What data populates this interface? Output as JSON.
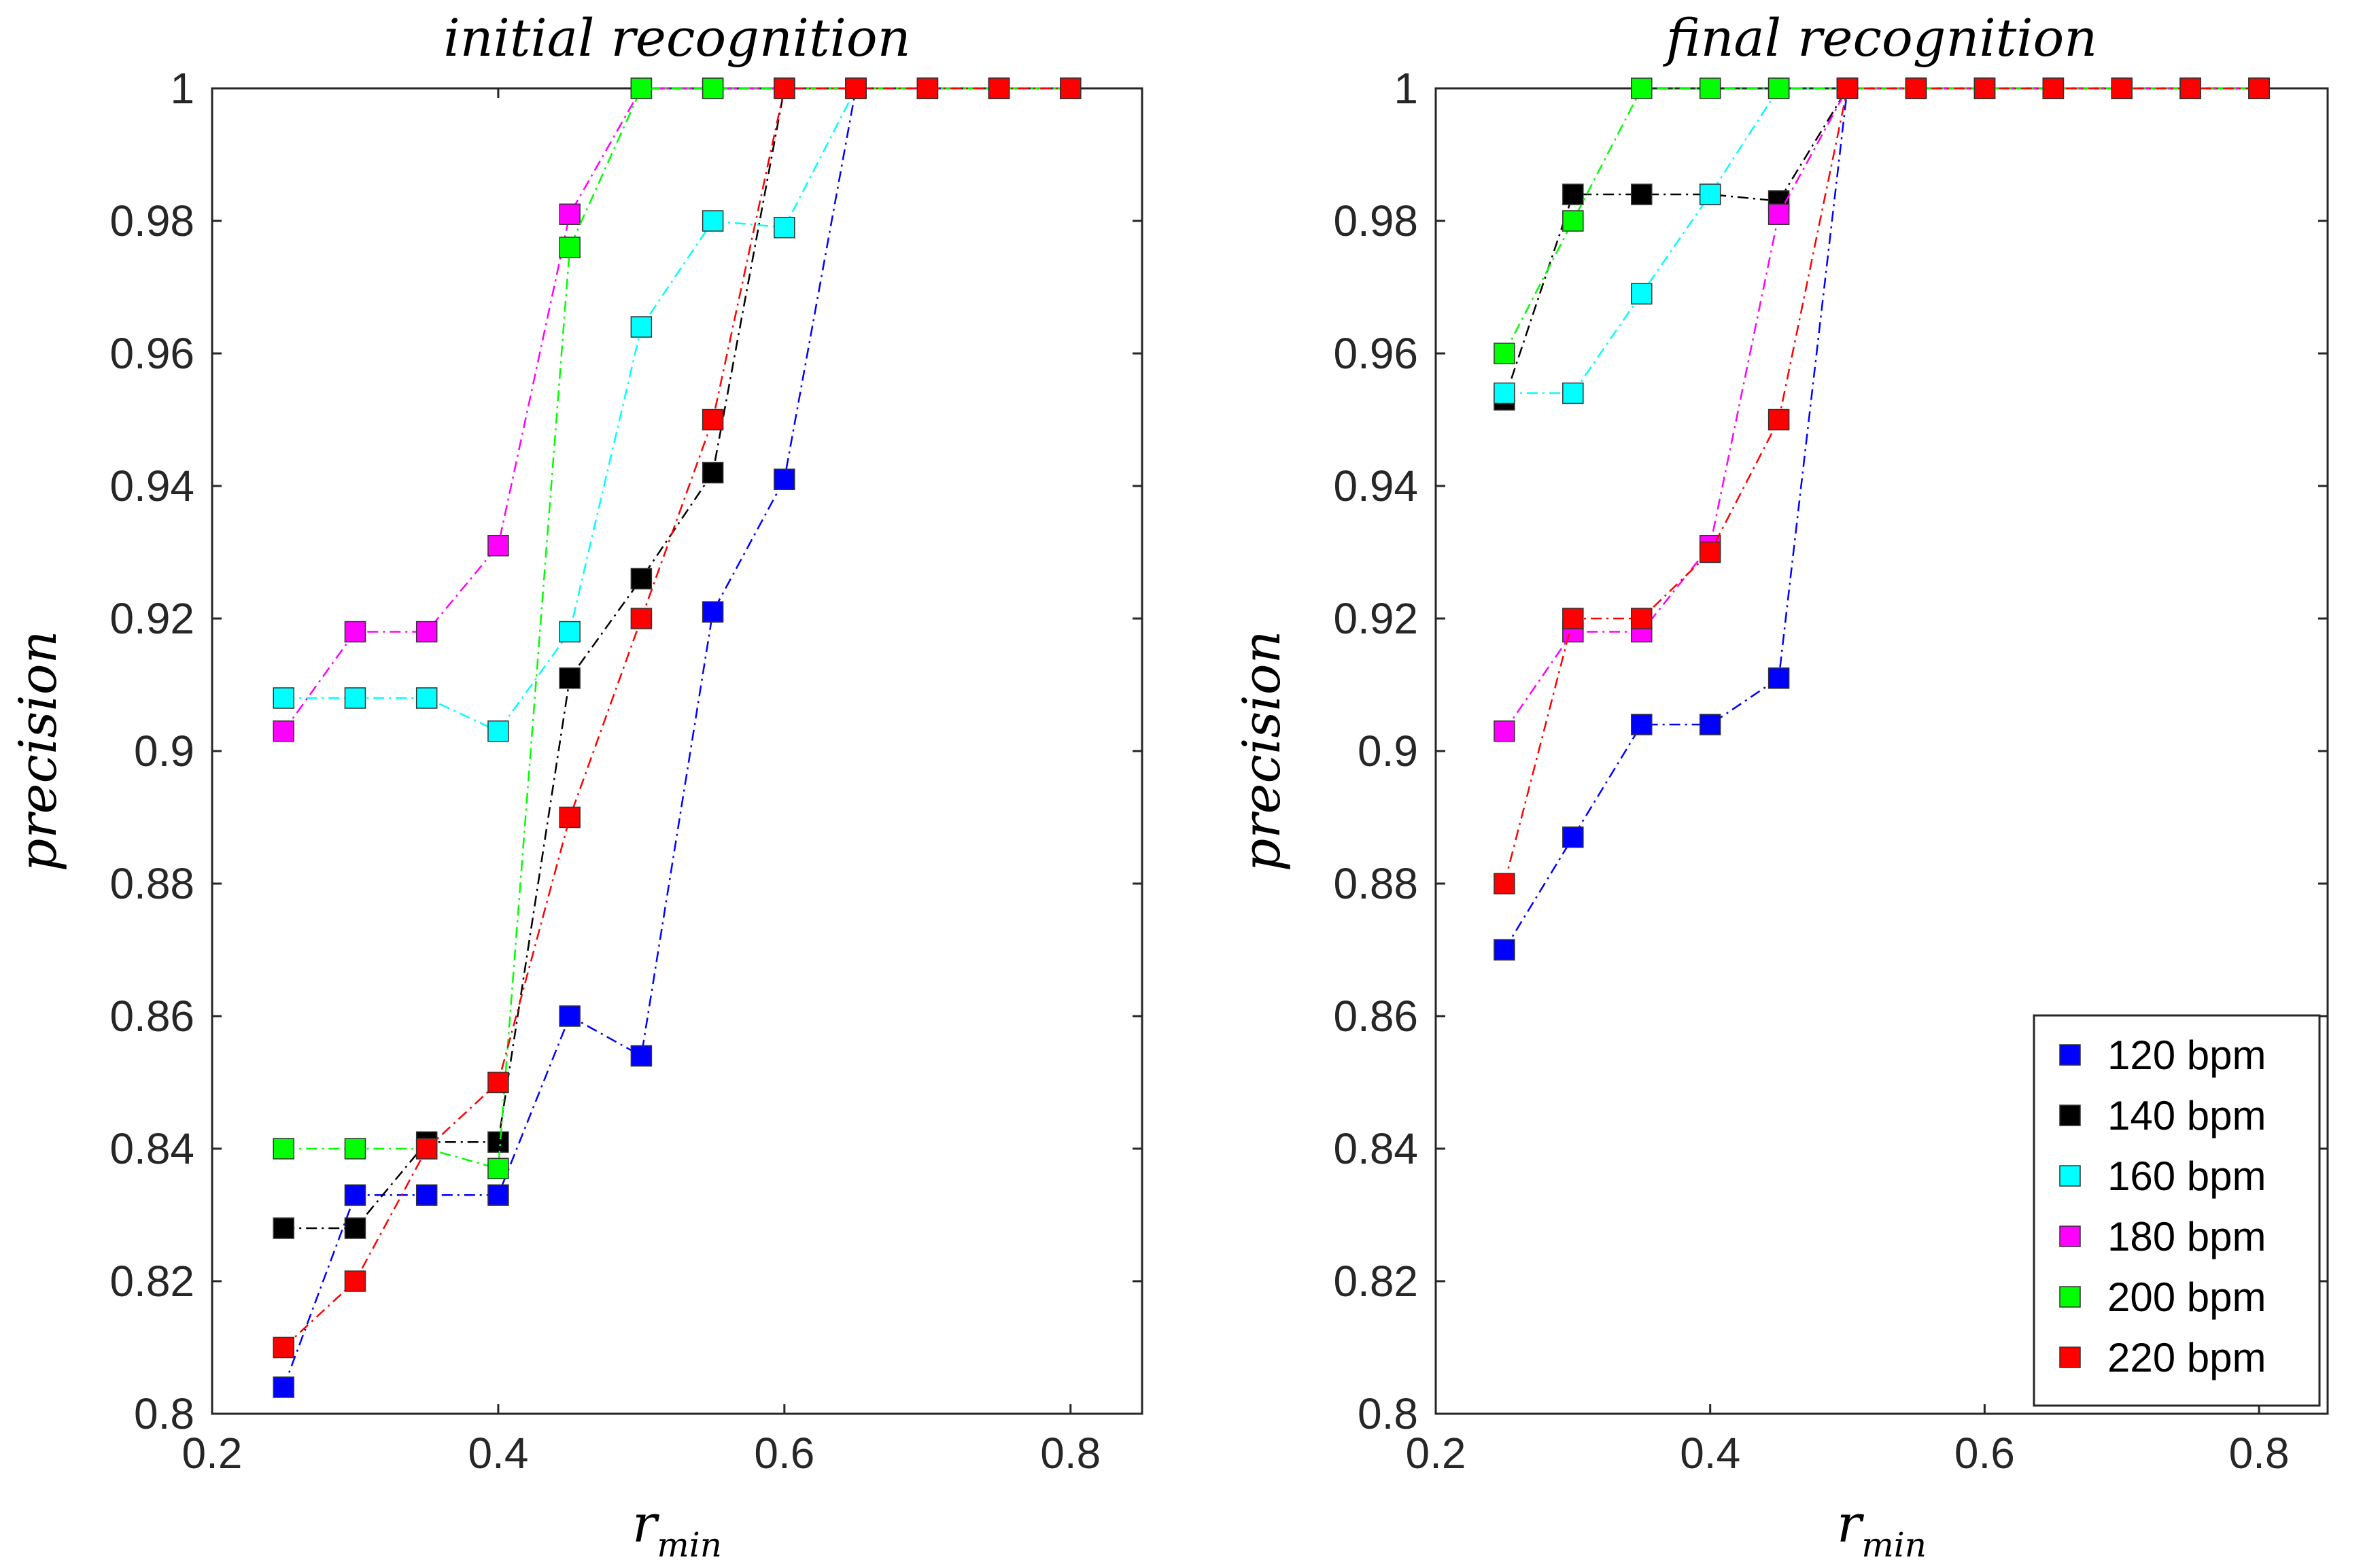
{
  "chart_data": [
    {
      "type": "line",
      "title": "initial recognition",
      "xlabel_main": "r",
      "xlabel_sub": "min",
      "ylabel": "precision",
      "xlim": [
        0.2,
        0.85
      ],
      "ylim": [
        0.8,
        1.0
      ],
      "xticks": [
        0.2,
        0.4,
        0.6,
        0.8
      ],
      "xtick_labels": [
        "0.2",
        "0.4",
        "0.6",
        "0.8"
      ],
      "yticks": [
        0.8,
        0.82,
        0.84,
        0.86,
        0.88,
        0.9,
        0.92,
        0.94,
        0.96,
        0.98,
        1.0
      ],
      "ytick_labels": [
        "0.8",
        "0.82",
        "0.84",
        "0.86",
        "0.88",
        "0.9",
        "0.92",
        "0.94",
        "0.96",
        "0.98",
        "1"
      ],
      "x": [
        0.25,
        0.3,
        0.35,
        0.4,
        0.45,
        0.5,
        0.55,
        0.6,
        0.65,
        0.7,
        0.75,
        0.8
      ],
      "series": [
        {
          "name": "120 bpm",
          "color": "#0000ff",
          "values": [
            0.804,
            0.833,
            0.833,
            0.833,
            0.86,
            0.854,
            0.921,
            0.941,
            1,
            1,
            1,
            1
          ]
        },
        {
          "name": "140 bpm",
          "color": "#000000",
          "values": [
            0.828,
            0.828,
            0.841,
            0.841,
            0.911,
            0.926,
            0.942,
            1,
            1,
            1,
            1,
            1
          ]
        },
        {
          "name": "160 bpm",
          "color": "#00ffff",
          "values": [
            0.908,
            0.908,
            0.908,
            0.903,
            0.918,
            0.964,
            0.98,
            0.979,
            1,
            1,
            1,
            1
          ]
        },
        {
          "name": "180 bpm",
          "color": "#ff00ff",
          "values": [
            0.903,
            0.918,
            0.918,
            0.931,
            0.981,
            1,
            1,
            1,
            1,
            1,
            1,
            1
          ]
        },
        {
          "name": "200 bpm",
          "color": "#00ff00",
          "values": [
            0.84,
            0.84,
            0.84,
            0.837,
            0.976,
            1,
            1,
            1,
            1,
            1,
            1,
            1
          ]
        },
        {
          "name": "220 bpm",
          "color": "#ff0000",
          "values": [
            0.81,
            0.82,
            0.84,
            0.85,
            0.89,
            0.92,
            0.95,
            1,
            1,
            1,
            1,
            1
          ]
        }
      ]
    },
    {
      "type": "line",
      "title": "final recognition",
      "xlabel_main": "r",
      "xlabel_sub": "min",
      "ylabel": "precision",
      "xlim": [
        0.2,
        0.85
      ],
      "ylim": [
        0.8,
        1.0
      ],
      "xticks": [
        0.2,
        0.4,
        0.6,
        0.8
      ],
      "xtick_labels": [
        "0.2",
        "0.4",
        "0.6",
        "0.8"
      ],
      "yticks": [
        0.8,
        0.82,
        0.84,
        0.86,
        0.88,
        0.9,
        0.92,
        0.94,
        0.96,
        0.98,
        1.0
      ],
      "ytick_labels": [
        "0.8",
        "0.82",
        "0.84",
        "0.86",
        "0.88",
        "0.9",
        "0.92",
        "0.94",
        "0.96",
        "0.98",
        "1"
      ],
      "x": [
        0.25,
        0.3,
        0.35,
        0.4,
        0.45,
        0.5,
        0.55,
        0.6,
        0.65,
        0.7,
        0.75,
        0.8
      ],
      "legend": {
        "location": "bottom-right",
        "entries": [
          "120 bpm",
          "140 bpm",
          "160 bpm",
          "180 bpm",
          "200 bpm",
          "220 bpm"
        ]
      },
      "series": [
        {
          "name": "120 bpm",
          "color": "#0000ff",
          "values": [
            0.87,
            0.887,
            0.904,
            0.904,
            0.911,
            1,
            1,
            1,
            1,
            1,
            1,
            1
          ]
        },
        {
          "name": "140 bpm",
          "color": "#000000",
          "values": [
            0.953,
            0.984,
            0.984,
            0.984,
            0.983,
            1,
            1,
            1,
            1,
            1,
            1,
            1
          ]
        },
        {
          "name": "160 bpm",
          "color": "#00ffff",
          "values": [
            0.954,
            0.954,
            0.969,
            0.984,
            1,
            1,
            1,
            1,
            1,
            1,
            1,
            1
          ]
        },
        {
          "name": "180 bpm",
          "color": "#ff00ff",
          "values": [
            0.903,
            0.918,
            0.918,
            0.931,
            0.981,
            1,
            1,
            1,
            1,
            1,
            1,
            1
          ]
        },
        {
          "name": "200 bpm",
          "color": "#00ff00",
          "values": [
            0.96,
            0.98,
            1,
            1,
            1,
            1,
            1,
            1,
            1,
            1,
            1,
            1
          ]
        },
        {
          "name": "220 bpm",
          "color": "#ff0000",
          "values": [
            0.88,
            0.92,
            0.92,
            0.93,
            0.95,
            1,
            1,
            1,
            1,
            1,
            1,
            1
          ]
        }
      ]
    }
  ]
}
